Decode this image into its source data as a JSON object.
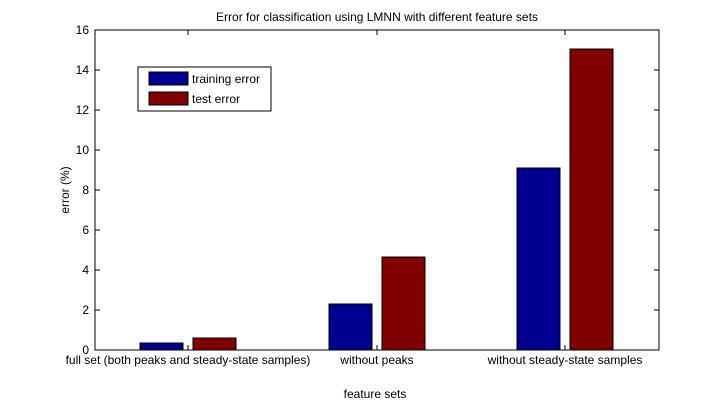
{
  "chart_data": {
    "type": "bar",
    "title": "Error for classification using LMNN with different feature sets",
    "xlabel": "feature sets",
    "ylabel": "error (%)",
    "ylim": [
      0,
      16
    ],
    "yticks": [
      0,
      2,
      4,
      6,
      8,
      10,
      12,
      14,
      16
    ],
    "grid": false,
    "legend_position": "top-left",
    "categories": [
      "full set (both peaks and steady-state samples)",
      "without peaks",
      "without steady-state samples"
    ],
    "series": [
      {
        "name": "training error",
        "color": "#000090",
        "values": [
          0.35,
          2.3,
          9.1
        ]
      },
      {
        "name": "test error",
        "color": "#800000",
        "values": [
          0.6,
          4.65,
          15.05
        ]
      }
    ]
  }
}
